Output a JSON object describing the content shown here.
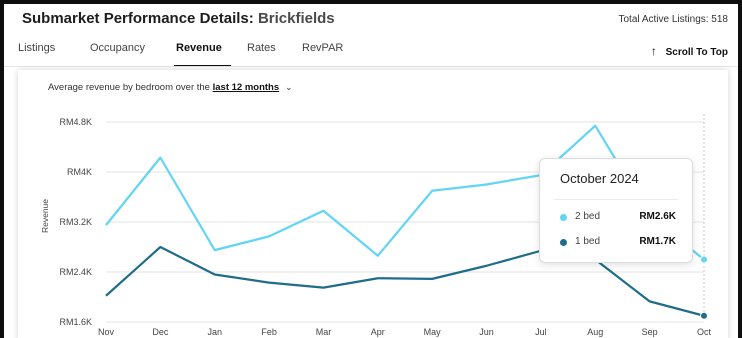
{
  "header": {
    "title": "Submarket Performance Details:",
    "submarket": "Brickfields",
    "total_listings": "Total Active Listings: 518"
  },
  "tabs": [
    {
      "label": "Listings",
      "active": false
    },
    {
      "label": "Occupancy",
      "active": false
    },
    {
      "label": "Revenue",
      "active": true
    },
    {
      "label": "Rates",
      "active": false
    },
    {
      "label": "RevPAR",
      "active": false
    }
  ],
  "scroll_to_top": "Scroll To Top",
  "chart_title": {
    "prefix": "Average revenue by bedroom over the",
    "link": "last 12 months"
  },
  "tooltip": {
    "title": "October 2024",
    "rows": [
      {
        "label": "2 bed",
        "value": "RM2.6K",
        "color": "#62d4f5"
      },
      {
        "label": "1 bed",
        "value": "RM1.7K",
        "color": "#1f6d88"
      }
    ]
  },
  "colors": {
    "two_bed": "#62d4f5",
    "one_bed": "#1f6d88",
    "grid": "#e3e3e3"
  },
  "icons": {
    "scroll_top": "arrow-up-icon",
    "dropdown": "chevron-down-icon"
  },
  "chart_data": {
    "type": "line",
    "ylabel": "Revenue",
    "xlabel": "",
    "ylim": [
      1600,
      4800
    ],
    "yticks": [
      1600,
      2400,
      3200,
      4000,
      4800
    ],
    "ytick_labels": [
      "RM1.6K",
      "RM2.4K",
      "RM3.2K",
      "RM4K",
      "RM4.8K"
    ],
    "categories": [
      "Nov",
      "Dec",
      "Jan",
      "Feb",
      "Mar",
      "Apr",
      "May",
      "Jun",
      "Jul",
      "Aug",
      "Sep",
      "Oct"
    ],
    "series": [
      {
        "name": "2 bed",
        "color": "#62d4f5",
        "values": [
          3150,
          4230,
          2750,
          2970,
          3380,
          2660,
          3700,
          3800,
          3950,
          4740,
          3300,
          2600
        ]
      },
      {
        "name": "1 bed",
        "color": "#1f6d88",
        "values": [
          2020,
          2800,
          2360,
          2230,
          2150,
          2300,
          2290,
          2500,
          2740,
          2600,
          1930,
          1700
        ]
      }
    ],
    "highlight_index": 11,
    "grid": true
  }
}
